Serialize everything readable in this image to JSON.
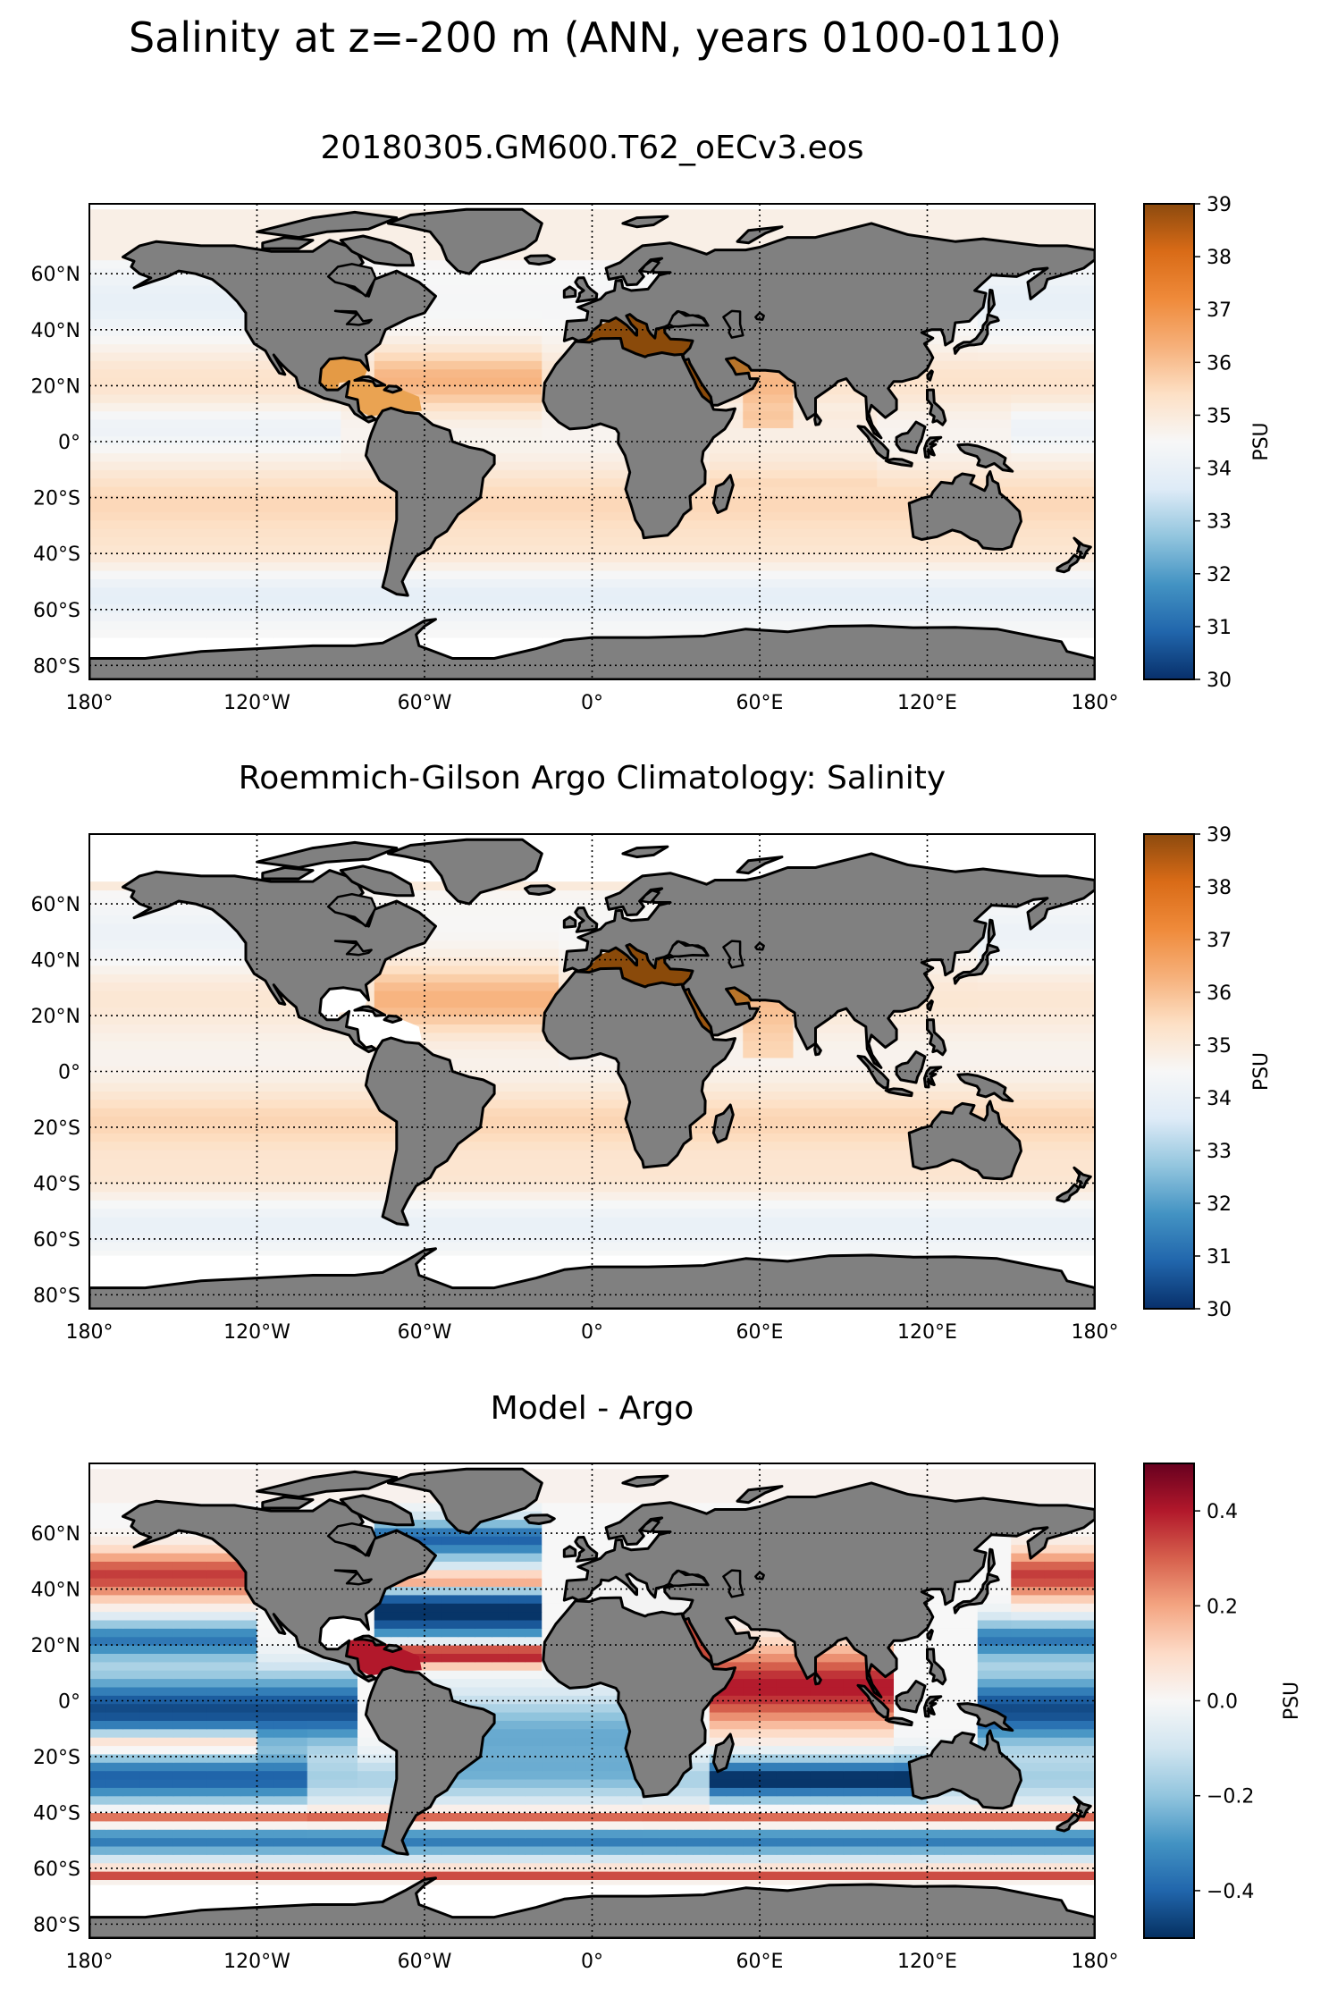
{
  "figure": {
    "suptitle": "Salinity at z=-200 m (ANN, years 0100-0110)"
  },
  "colors": {
    "land": "#808080",
    "coast": "#000000",
    "no_data": "#ffffff",
    "brbg_r": [
      "#003c30",
      "#01665e",
      "#35978f",
      "#80cdc1",
      "#c7eae5",
      "#f5f5f5",
      "#f6e8c3",
      "#dfc27d",
      "#bf812d",
      "#8c510a",
      "#543005"
    ],
    "rdbu_r": [
      "#053061",
      "#2166ac",
      "#4393c3",
      "#92c5de",
      "#d1e5f0",
      "#f7f7f7",
      "#fddbc7",
      "#f4a582",
      "#d6604d",
      "#b2182b",
      "#67001f"
    ],
    "rdylbu_like": [
      "#08306b",
      "#2166ac",
      "#4393c3",
      "#92c5de",
      "#deebf7",
      "#f7f7f7",
      "#fde0c5",
      "#f6b07a",
      "#ef8a3a",
      "#d96b17",
      "#8c4a0e"
    ]
  },
  "chart_data": [
    {
      "type": "heatmap",
      "title": "20180305.GM600.T62_oECv3.eos",
      "xlabel": "",
      "ylabel": "",
      "xlim": [
        -180,
        180
      ],
      "ylim": [
        -85,
        85
      ],
      "xticks": [
        -180,
        -120,
        -60,
        0,
        60,
        120,
        180
      ],
      "xtick_labels": [
        "180°",
        "120°W",
        "60°W",
        "0°",
        "60°E",
        "120°E",
        "180°"
      ],
      "yticks": [
        -80,
        -60,
        -40,
        -20,
        0,
        20,
        40,
        60
      ],
      "ytick_labels": [
        "80°S",
        "60°S",
        "40°S",
        "20°S",
        "0°",
        "20°N",
        "40°N",
        "60°N"
      ],
      "grid": true,
      "colorbar": {
        "label": "PSU",
        "vmin": 30,
        "vmax": 39,
        "cmap": "orange_blue",
        "ticks": [
          30,
          31,
          32,
          33,
          34,
          35,
          36,
          37,
          38,
          39
        ],
        "tick_labels": [
          "30",
          "31",
          "32",
          "33",
          "34",
          "35",
          "36",
          "37",
          "38",
          "39"
        ]
      },
      "field": "salinity_model"
    },
    {
      "type": "heatmap",
      "title": "Roemmich-Gilson Argo Climatology: Salinity",
      "xlabel": "",
      "ylabel": "",
      "xlim": [
        -180,
        180
      ],
      "ylim": [
        -85,
        85
      ],
      "xticks": [
        -180,
        -120,
        -60,
        0,
        60,
        120,
        180
      ],
      "xtick_labels": [
        "180°",
        "120°W",
        "60°W",
        "0°",
        "60°E",
        "120°E",
        "180°"
      ],
      "yticks": [
        -80,
        -60,
        -40,
        -20,
        0,
        20,
        40,
        60
      ],
      "ytick_labels": [
        "80°S",
        "60°S",
        "40°S",
        "20°S",
        "0°",
        "20°N",
        "40°N",
        "60°N"
      ],
      "grid": true,
      "colorbar": {
        "label": "PSU",
        "vmin": 30,
        "vmax": 39,
        "cmap": "orange_blue",
        "ticks": [
          30,
          31,
          32,
          33,
          34,
          35,
          36,
          37,
          38,
          39
        ],
        "tick_labels": [
          "30",
          "31",
          "32",
          "33",
          "34",
          "35",
          "36",
          "37",
          "38",
          "39"
        ]
      },
      "field": "salinity_argo"
    },
    {
      "type": "heatmap",
      "title": "Model - Argo",
      "xlabel": "",
      "ylabel": "",
      "xlim": [
        -180,
        180
      ],
      "ylim": [
        -85,
        85
      ],
      "xticks": [
        -180,
        -120,
        -60,
        0,
        60,
        120,
        180
      ],
      "xtick_labels": [
        "180°",
        "120°W",
        "60°W",
        "0°",
        "60°E",
        "120°E",
        "180°"
      ],
      "yticks": [
        -80,
        -60,
        -40,
        -20,
        0,
        20,
        40,
        60
      ],
      "ytick_labels": [
        "80°S",
        "60°S",
        "40°S",
        "20°S",
        "0°",
        "20°N",
        "40°N",
        "60°N"
      ],
      "grid": true,
      "colorbar": {
        "label": "PSU",
        "vmin": -0.5,
        "vmax": 0.5,
        "cmap": "RdBu_r",
        "ticks": [
          -0.4,
          -0.2,
          0.0,
          0.2,
          0.4
        ],
        "tick_labels": [
          "−0.4",
          "−0.2",
          "0.0",
          "0.2",
          "0.4"
        ]
      },
      "field": "salinity_diff"
    }
  ]
}
